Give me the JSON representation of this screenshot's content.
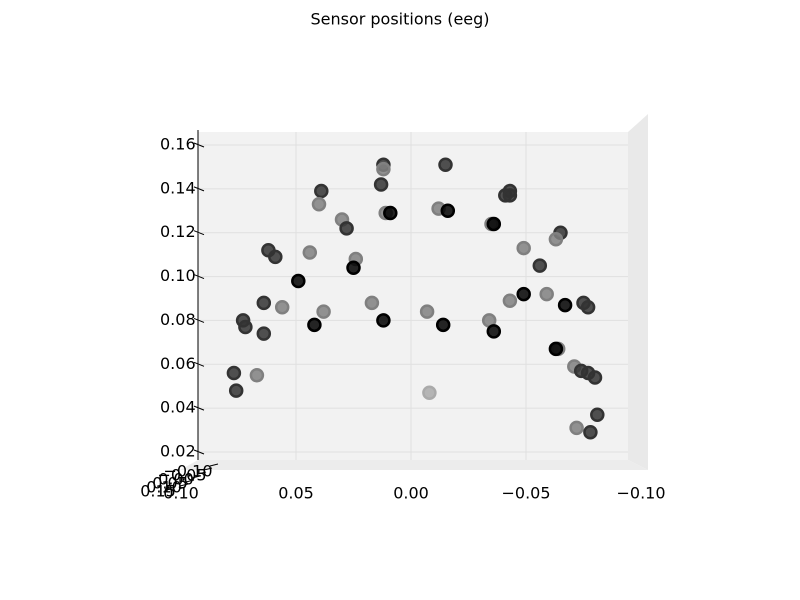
{
  "chart_data": {
    "type": "scatter",
    "title": "Sensor positions (eeg)",
    "x": [
      0.012,
      0.012,
      -0.015,
      0.039,
      0.04,
      0.013,
      0.03,
      0.028,
      0.011,
      0.009,
      -0.012,
      -0.016,
      -0.043,
      -0.041,
      -0.043,
      -0.035,
      -0.036,
      0.062,
      0.059,
      0.044,
      0.024,
      0.025,
      -0.049,
      -0.065,
      -0.063,
      -0.056,
      0.049,
      -0.049,
      -0.059,
      0.064,
      0.056,
      0.038,
      0.042,
      0.017,
      0.012,
      -0.007,
      -0.014,
      -0.043,
      -0.067,
      -0.075,
      -0.077,
      0.073,
      0.072,
      0.064,
      -0.034,
      -0.036,
      -0.064,
      -0.063,
      0.077,
      0.067,
      0.076,
      -0.071,
      -0.074,
      -0.077,
      -0.08,
      -0.008,
      -0.081,
      -0.072,
      -0.078
    ],
    "values": [
      0.151,
      0.149,
      0.151,
      0.139,
      0.133,
      0.142,
      0.126,
      0.122,
      0.129,
      0.129,
      0.131,
      0.13,
      0.139,
      0.137,
      0.137,
      0.124,
      0.124,
      0.112,
      0.109,
      0.111,
      0.108,
      0.104,
      0.113,
      0.12,
      0.117,
      0.105,
      0.098,
      0.092,
      0.092,
      0.088,
      0.086,
      0.084,
      0.078,
      0.088,
      0.08,
      0.084,
      0.078,
      0.089,
      0.087,
      0.088,
      0.086,
      0.08,
      0.077,
      0.074,
      0.08,
      0.075,
      0.067,
      0.067,
      0.056,
      0.055,
      0.048,
      0.059,
      0.057,
      0.056,
      0.054,
      0.047,
      0.037,
      0.031,
      0.029
    ],
    "colors": [
      "#333333",
      "#808080",
      "#333333",
      "#333333",
      "#808080",
      "#333333",
      "#808080",
      "#333333",
      "#808080",
      "#000000",
      "#808080",
      "#000000",
      "#333333",
      "#333333",
      "#333333",
      "#808080",
      "#000000",
      "#333333",
      "#333333",
      "#808080",
      "#808080",
      "#000000",
      "#808080",
      "#333333",
      "#808080",
      "#333333",
      "#000000",
      "#000000",
      "#808080",
      "#333333",
      "#808080",
      "#808080",
      "#000000",
      "#808080",
      "#000000",
      "#808080",
      "#000000",
      "#808080",
      "#000000",
      "#333333",
      "#333333",
      "#333333",
      "#333333",
      "#333333",
      "#808080",
      "#000000",
      "#808080",
      "#000000",
      "#333333",
      "#808080",
      "#333333",
      "#808080",
      "#333333",
      "#333333",
      "#333333",
      "#aaaaaa",
      "#333333",
      "#808080",
      "#333333"
    ],
    "xlim": [
      0.1,
      -0.1
    ],
    "xticks": [
      {
        "value": 0.1,
        "label": "0.10"
      },
      0.05,
      {
        "value": 0,
        "label": "0.00"
      },
      {
        "value": -0.05,
        "label": "−0.05"
      },
      {
        "value": -0.1,
        "label": "−0.10"
      }
    ],
    "ylim": [
      0.02,
      0.16
    ],
    "yticks": [
      0.02,
      0.04,
      0.06,
      0.08,
      {
        "value": 0.1,
        "label": "0.10"
      },
      0.12,
      0.14,
      0.16
    ],
    "zticks": [
      {
        "value": 0.15,
        "label": "0.15"
      },
      {
        "value": 0.1,
        "label": "0.10"
      },
      0.05,
      {
        "value": 0,
        "label": "0.00"
      },
      {
        "value": -0.05,
        "label": "−0.05"
      },
      {
        "value": -0.1,
        "label": "−0.10"
      }
    ],
    "grid": true
  }
}
